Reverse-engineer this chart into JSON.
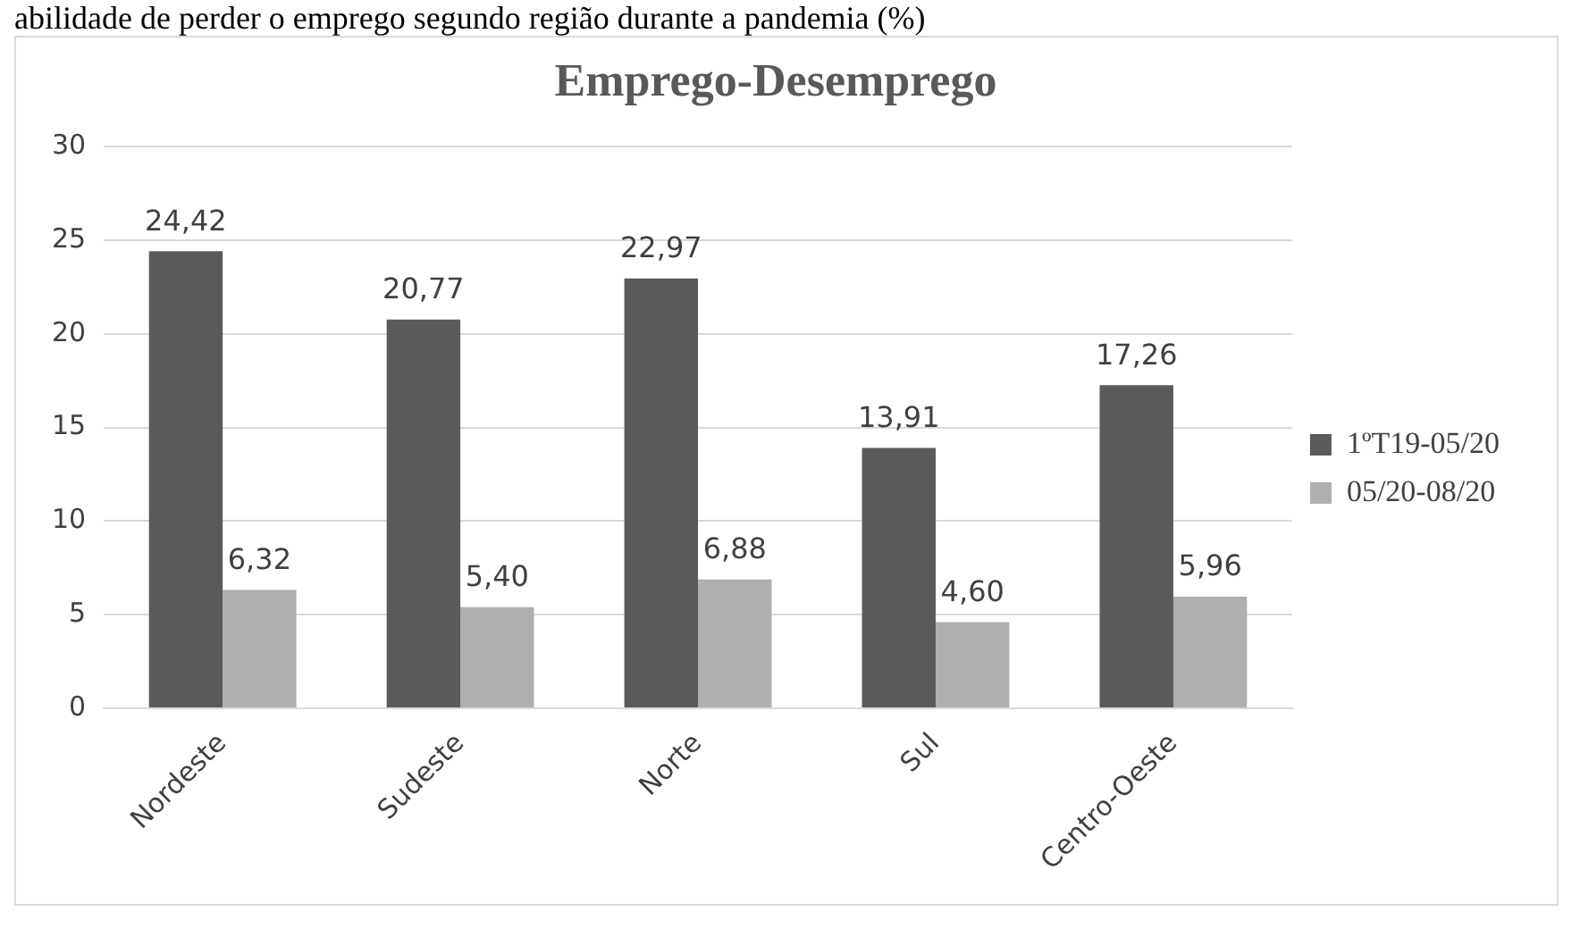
{
  "chart_data": {
    "type": "bar",
    "title": "Emprego-Desemprego",
    "subtitle": "abilidade de perder o emprego segundo região durante a pandemia (%)",
    "categories": [
      "Nordeste",
      "Sudeste",
      "Norte",
      "Sul",
      "Centro-Oeste"
    ],
    "series": [
      {
        "name": "1ºT19-05/20",
        "color": "#5a5a5a",
        "values": [
          24.42,
          20.77,
          22.97,
          13.91,
          17.26
        ],
        "value_labels": [
          "24,42",
          "20,77",
          "22,97",
          "13,91",
          "17,26"
        ]
      },
      {
        "name": "05/20-08/20",
        "color": "#afafaf",
        "values": [
          6.32,
          5.4,
          6.88,
          4.6,
          5.96
        ],
        "value_labels": [
          "6,32",
          "5,40",
          "6,88",
          "4,60",
          "5,96"
        ]
      }
    ],
    "ylim": [
      0,
      30
    ],
    "yticks": [
      0,
      5,
      10,
      15,
      20,
      25,
      30
    ],
    "grid": "y",
    "legend": "right"
  }
}
